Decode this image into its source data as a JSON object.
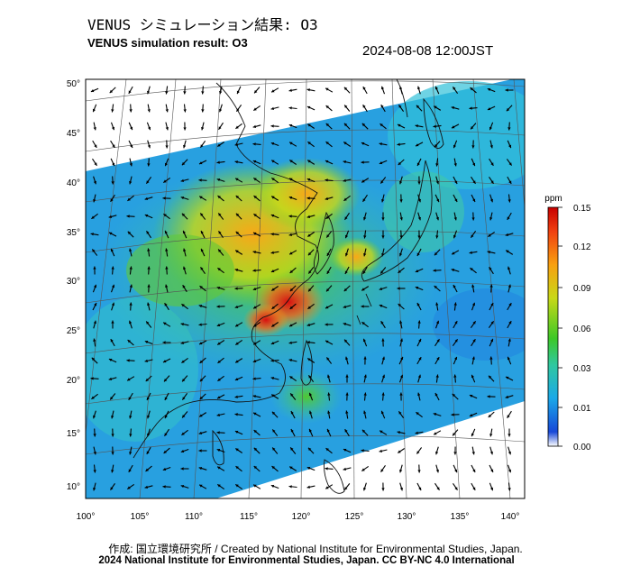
{
  "header": {
    "title_jp": "VENUS シミュレーション結果: O3",
    "title_en": "VENUS simulation result: O3",
    "timestamp": "2024-08-08 12:00JST"
  },
  "map": {
    "lon_ticks": [
      "100°",
      "105°",
      "110°",
      "115°",
      "120°",
      "125°",
      "130°",
      "135°",
      "140°"
    ],
    "lat_ticks": [
      "50°",
      "45°",
      "40°",
      "35°",
      "30°",
      "25°",
      "20°",
      "15°",
      "10°"
    ]
  },
  "colorbar": {
    "unit": "ppm",
    "ticks": [
      "0.15",
      "0.12",
      "0.09",
      "0.06",
      "0.03",
      "0.01",
      "0.00"
    ],
    "colors": [
      "#ffffff",
      "#1848d8",
      "#1aa8e8",
      "#30c8a0",
      "#3cc828",
      "#c8d818",
      "#f8a010",
      "#f04010",
      "#c80000"
    ]
  },
  "footer": {
    "credit_jp": "作成: 国立環境研究所 / Created by National Institute for Environmental Studies, Japan.",
    "credit_en": "2024 National Institute for Environmental Studies, Japan. CC BY-NC 4.0 International"
  }
}
